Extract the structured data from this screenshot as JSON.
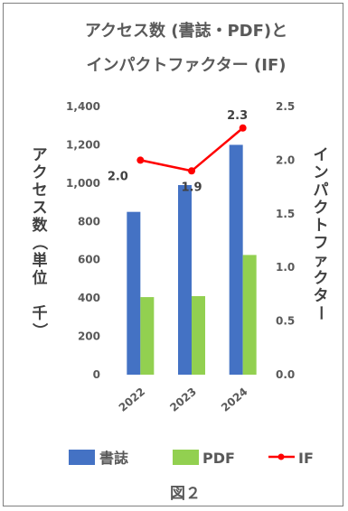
{
  "chart_data": {
    "type": "bar",
    "title_line1": "アクセス数 (書誌・PDF)と",
    "title_line2": "インパクトファクター (IF)",
    "categories": [
      "2022",
      "2023",
      "2024"
    ],
    "series": [
      {
        "name": "書誌",
        "type": "bar",
        "axis": "left",
        "color": "#4472C4",
        "values": [
          850,
          990,
          1200
        ]
      },
      {
        "name": "PDF",
        "type": "bar",
        "axis": "left",
        "color": "#92D050",
        "values": [
          405,
          410,
          625
        ]
      },
      {
        "name": "IF",
        "type": "line",
        "axis": "right",
        "color": "#FF0000",
        "values": [
          2.0,
          1.9,
          2.3
        ],
        "labels": [
          "2.0",
          "1.9",
          "2.3"
        ]
      }
    ],
    "left_axis": {
      "label": "アクセス数（単位 千）",
      "ylim": [
        0,
        1400
      ],
      "ticks": [
        "0",
        "200",
        "400",
        "600",
        "800",
        "1,000",
        "1,200",
        "1,400"
      ]
    },
    "right_axis": {
      "label": "インパクトファクター",
      "ylim": [
        0,
        2.5
      ],
      "ticks": [
        "0.0",
        "0.5",
        "1.0",
        "1.5",
        "2.0",
        "2.5"
      ]
    },
    "grid": false,
    "legend_position": "bottom"
  },
  "caption": "図２"
}
